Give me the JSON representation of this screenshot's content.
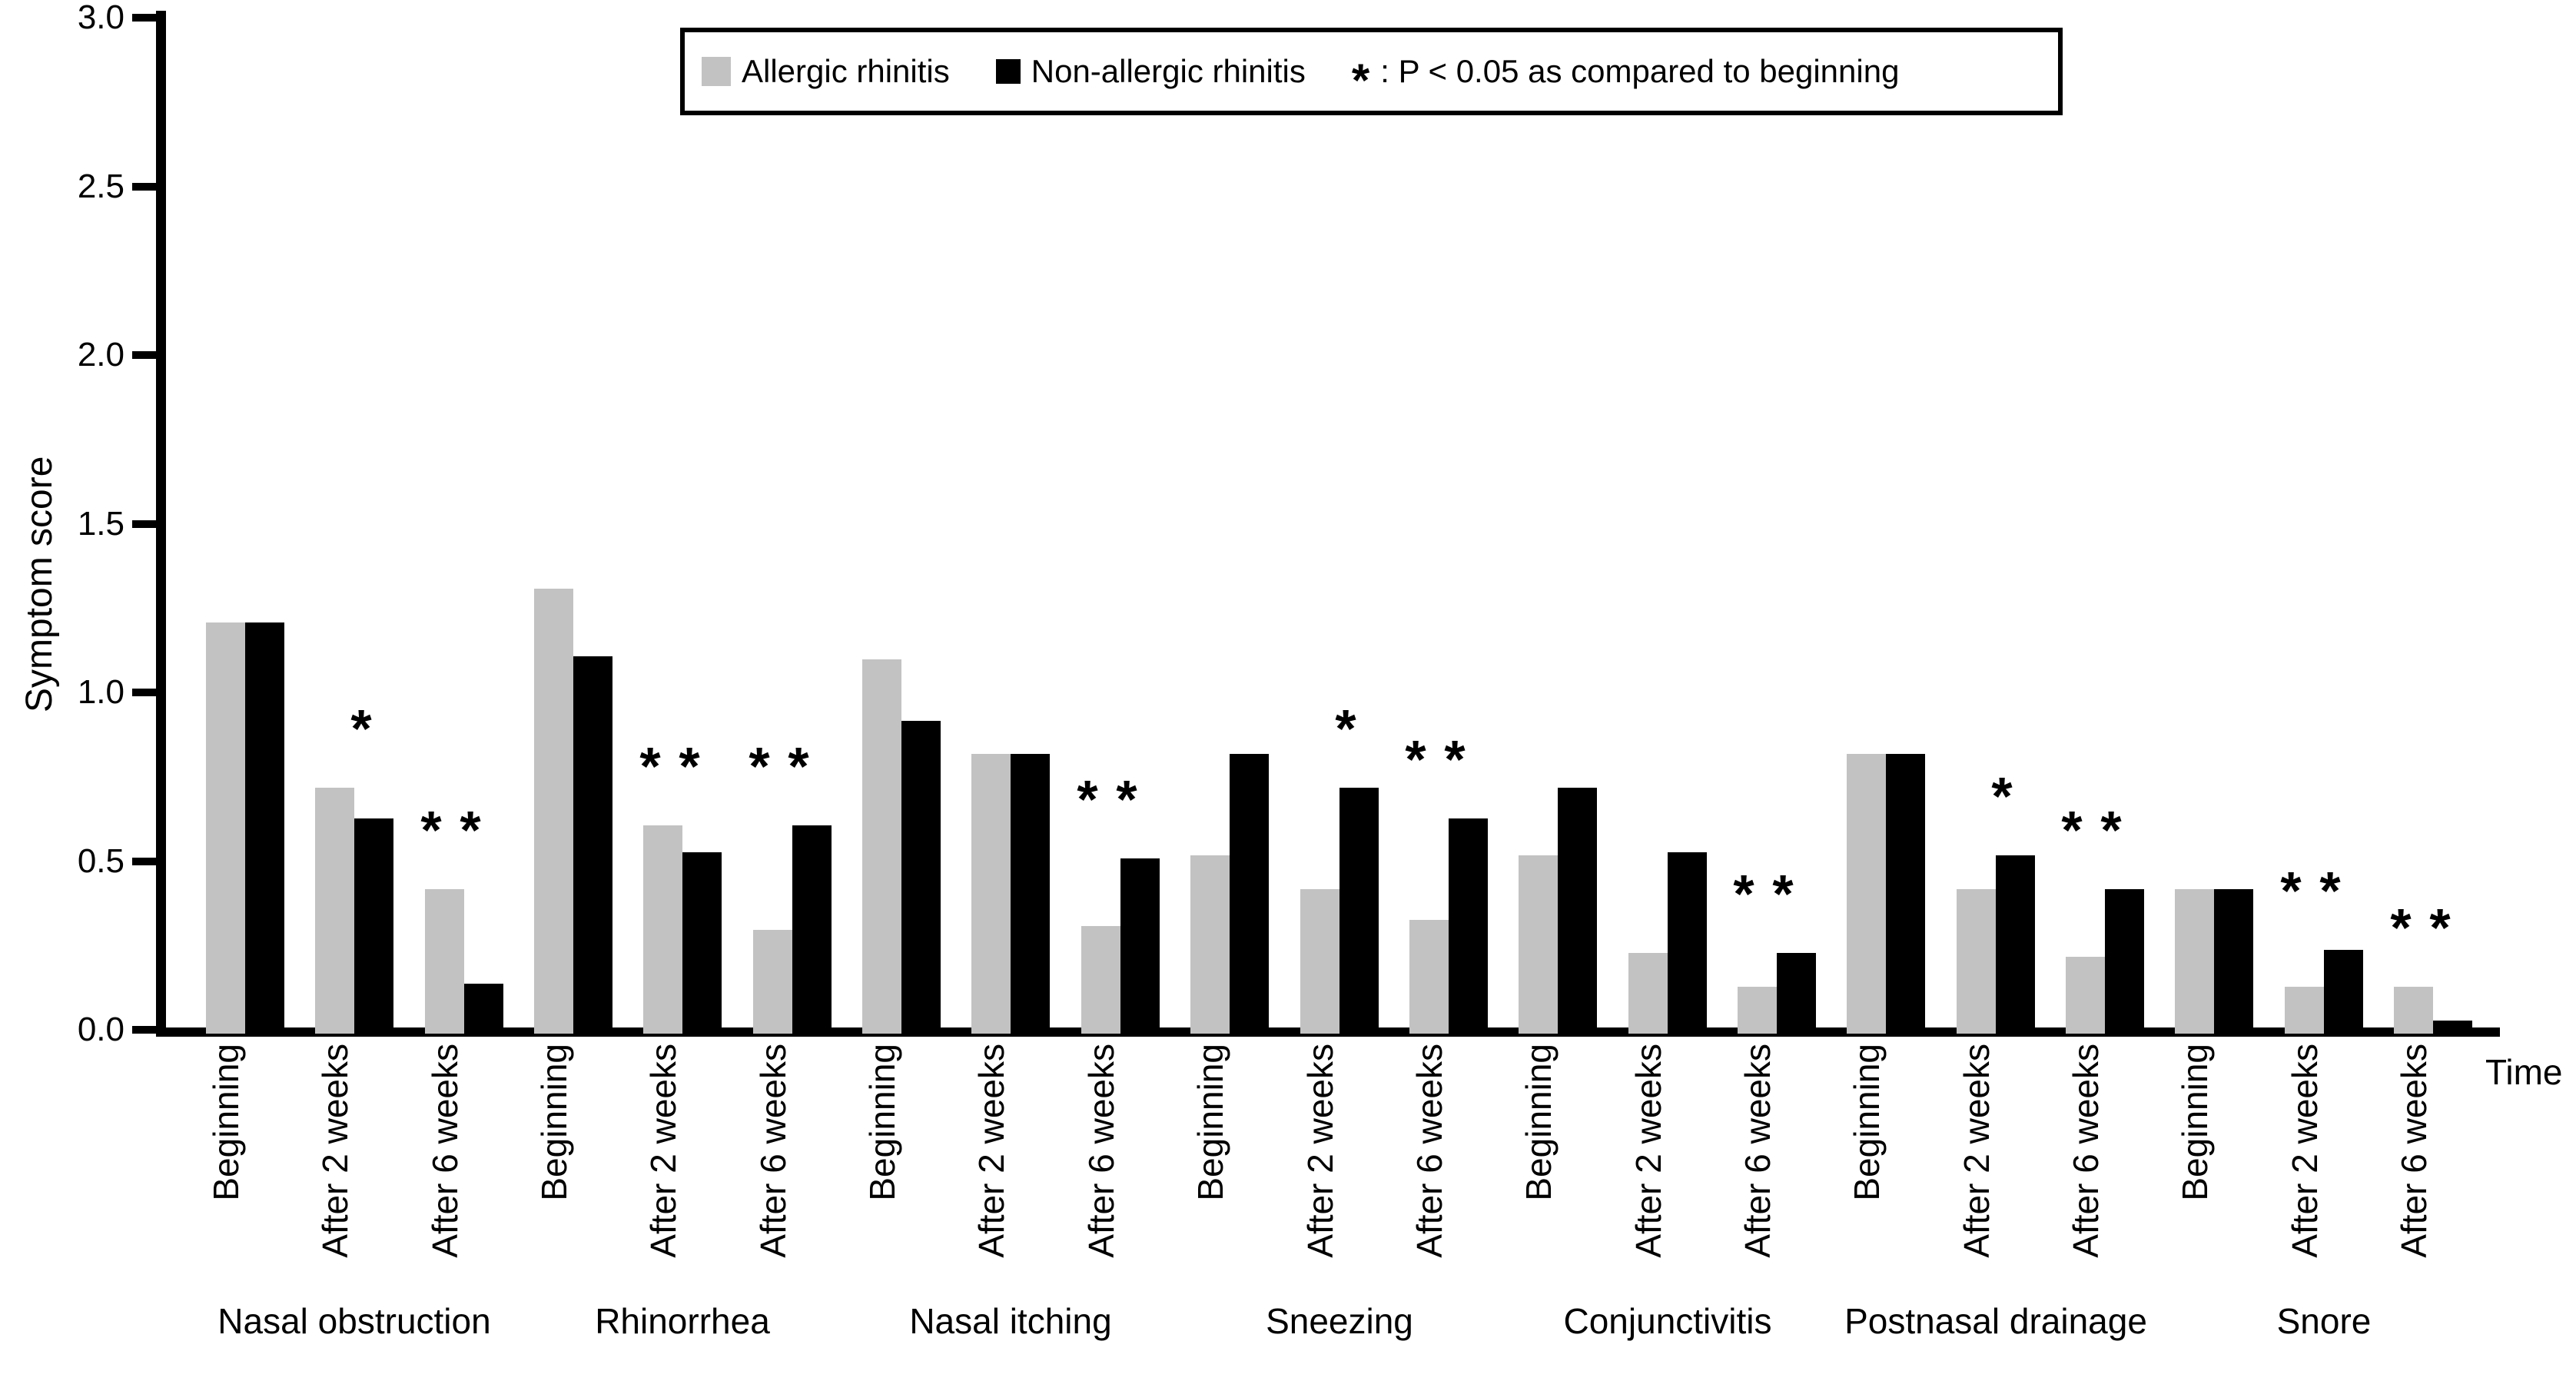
{
  "y_axis": {
    "title": "Symptom score",
    "tick_step": 0.5,
    "max": 3.0,
    "tick_labels": [
      "0.0",
      "0.5",
      "1.0",
      "1.5",
      "2.0",
      "2.5",
      "3.0"
    ]
  },
  "x_axis": {
    "axis_label": "Time",
    "timepoints": [
      "Beginning",
      "After 2 weeks",
      "After 6 weeks"
    ]
  },
  "legend": {
    "allergic_label": "Allergic rhinitis",
    "non_allergic_label": "Non-allergic rhinitis",
    "star_symbol": "*",
    "note_text": ": P < 0.05 as compared to beginning"
  },
  "colors": {
    "allergic": "#c2c2c2",
    "non_allergic": "#000000"
  },
  "chart_data": {
    "type": "bar",
    "title": "",
    "xlabel": "Time",
    "ylabel": "Symptom score",
    "ylim": [
      0,
      3.0
    ],
    "yticks": [
      0,
      0.5,
      1.0,
      1.5,
      2.0,
      2.5,
      3.0
    ],
    "grid": false,
    "legend_position": "top-center",
    "series_names": [
      "Allergic rhinitis",
      "Non-allergic rhinitis"
    ],
    "star_meaning": "P < 0.05 as compared to beginning",
    "groups": [
      {
        "label": "Nasal obstruction",
        "times": [
          {
            "time": "Beginning",
            "allergic": 1.2,
            "non_allergic": 1.2,
            "star_allergic": false,
            "star_non_allergic": false
          },
          {
            "time": "After 2 weeks",
            "allergic": 0.71,
            "non_allergic": 0.62,
            "star_allergic": false,
            "star_non_allergic": true
          },
          {
            "time": "After 6 weeks",
            "allergic": 0.41,
            "non_allergic": 0.13,
            "star_allergic": true,
            "star_non_allergic": true
          }
        ]
      },
      {
        "label": "Rhinorrhea",
        "times": [
          {
            "time": "Beginning",
            "allergic": 1.3,
            "non_allergic": 1.1,
            "star_allergic": false,
            "star_non_allergic": false
          },
          {
            "time": "After 2 weeks",
            "allergic": 0.6,
            "non_allergic": 0.52,
            "star_allergic": true,
            "star_non_allergic": true
          },
          {
            "time": "After 6 weeks",
            "allergic": 0.29,
            "non_allergic": 0.6,
            "star_allergic": true,
            "star_non_allergic": true
          }
        ]
      },
      {
        "label": "Nasal itching",
        "times": [
          {
            "time": "Beginning",
            "allergic": 1.09,
            "non_allergic": 0.91,
            "star_allergic": false,
            "star_non_allergic": false
          },
          {
            "time": "After 2 weeks",
            "allergic": 0.81,
            "non_allergic": 0.81,
            "star_allergic": false,
            "star_non_allergic": false
          },
          {
            "time": "After 6 weeks",
            "allergic": 0.3,
            "non_allergic": 0.5,
            "star_allergic": true,
            "star_non_allergic": true
          }
        ]
      },
      {
        "label": "Sneezing",
        "times": [
          {
            "time": "Beginning",
            "allergic": 0.51,
            "non_allergic": 0.81,
            "star_allergic": false,
            "star_non_allergic": false
          },
          {
            "time": "After 2 weeks",
            "allergic": 0.41,
            "non_allergic": 0.71,
            "star_allergic": false,
            "star_non_allergic": true
          },
          {
            "time": "After 6 weeks",
            "allergic": 0.32,
            "non_allergic": 0.62,
            "star_allergic": true,
            "star_non_allergic": true
          }
        ]
      },
      {
        "label": "Conjunctivitis",
        "times": [
          {
            "time": "Beginning",
            "allergic": 0.51,
            "non_allergic": 0.71,
            "star_allergic": false,
            "star_non_allergic": false
          },
          {
            "time": "After 2 weeks",
            "allergic": 0.22,
            "non_allergic": 0.52,
            "star_allergic": false,
            "star_non_allergic": false
          },
          {
            "time": "After 6 weeks",
            "allergic": 0.12,
            "non_allergic": 0.22,
            "star_allergic": true,
            "star_non_allergic": true
          }
        ]
      },
      {
        "label": "Postnasal drainage",
        "times": [
          {
            "time": "Beginning",
            "allergic": 0.81,
            "non_allergic": 0.81,
            "star_allergic": false,
            "star_non_allergic": false
          },
          {
            "time": "After 2 weeks",
            "allergic": 0.41,
            "non_allergic": 0.51,
            "star_allergic": false,
            "star_non_allergic": true
          },
          {
            "time": "After 6 weeks",
            "allergic": 0.21,
            "non_allergic": 0.41,
            "star_allergic": true,
            "star_non_allergic": true
          }
        ]
      },
      {
        "label": "Snore",
        "times": [
          {
            "time": "Beginning",
            "allergic": 0.41,
            "non_allergic": 0.41,
            "star_allergic": false,
            "star_non_allergic": false
          },
          {
            "time": "After 2 weeks",
            "allergic": 0.12,
            "non_allergic": 0.23,
            "star_allergic": true,
            "star_non_allergic": true
          },
          {
            "time": "After 6 weeks",
            "allergic": 0.12,
            "non_allergic": 0.02,
            "star_allergic": true,
            "star_non_allergic": true
          }
        ]
      }
    ]
  }
}
